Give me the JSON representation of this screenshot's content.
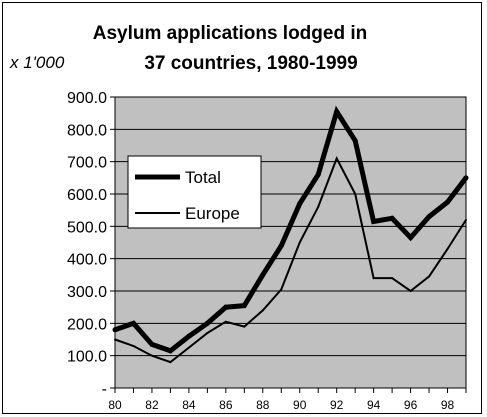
{
  "chart_data": {
    "type": "line",
    "title": "Asylum applications lodged in 37 countries, 1980-1999",
    "title_lines": [
      "Asylum applications lodged in",
      "37 countries, 1980-1999"
    ],
    "unit_label": "x 1'000",
    "x": [
      1980,
      1981,
      1982,
      1983,
      1984,
      1985,
      1986,
      1987,
      1988,
      1989,
      1990,
      1991,
      1992,
      1993,
      1994,
      1995,
      1996,
      1997,
      1998,
      1999
    ],
    "x_tick_labels": [
      "80",
      "82",
      "84",
      "86",
      "88",
      "90",
      "92",
      "94",
      "96",
      "98"
    ],
    "y_tick_labels": [
      "-",
      "100.0",
      "200.0",
      "300.0",
      "400.0",
      "500.0",
      "600.0",
      "700.0",
      "800.0",
      "900.0"
    ],
    "ylim": [
      0,
      900
    ],
    "grid": "horizontal",
    "plot_background": "#c0c0c0",
    "legend_position": "left-middle",
    "series": [
      {
        "name": "Total",
        "color": "#000000",
        "line": "thick",
        "values": [
          180,
          200,
          135,
          115,
          160,
          200,
          250,
          255,
          350,
          440,
          570,
          660,
          855,
          765,
          515,
          525,
          465,
          530,
          575,
          650
        ]
      },
      {
        "name": "Europe",
        "color": "#000000",
        "line": "thin",
        "values": [
          150,
          130,
          100,
          80,
          125,
          170,
          205,
          190,
          240,
          305,
          450,
          560,
          710,
          600,
          340,
          340,
          300,
          345,
          430,
          520
        ]
      }
    ]
  }
}
